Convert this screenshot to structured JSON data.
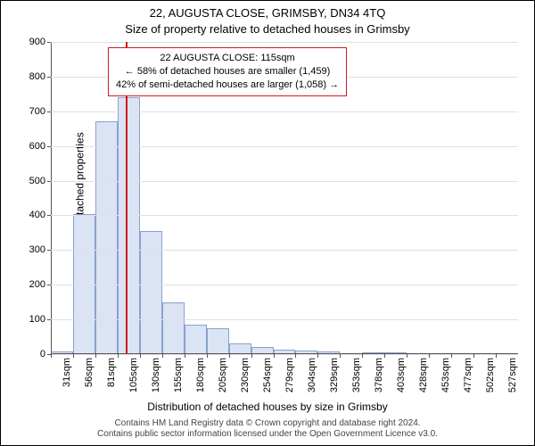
{
  "title_line1": "22, AUGUSTA CLOSE, GRIMSBY, DN34 4TQ",
  "title_line2": "Size of property relative to detached houses in Grimsby",
  "y_axis_label": "Number of detached properties",
  "x_axis_label": "Distribution of detached houses by size in Grimsby",
  "caption_line1": "Contains HM Land Registry data © Crown copyright and database right 2024.",
  "caption_line2": "Contains public sector information licensed under the Open Government Licence v3.0.",
  "histogram": {
    "type": "histogram",
    "ylim": [
      0,
      900
    ],
    "ytick_step": 100,
    "grid_color": "#e0e0e0",
    "axis_color": "#555555",
    "background_color": "#ffffff",
    "bar_fill": "#dbe4f5",
    "bar_stroke": "#8aa0cf",
    "marker_color": "#d11a1a",
    "marker_x_sqm": 115,
    "x_start_sqm": 31,
    "x_bin_width_sqm": 25,
    "label_fontsize": 12,
    "tick_fontsize": 11,
    "title_fontsize": 13,
    "bins": [
      {
        "label": "31sqm",
        "count": 8
      },
      {
        "label": "56sqm",
        "count": 405
      },
      {
        "label": "81sqm",
        "count": 670
      },
      {
        "label": "105sqm",
        "count": 740
      },
      {
        "label": "130sqm",
        "count": 355
      },
      {
        "label": "155sqm",
        "count": 148
      },
      {
        "label": "180sqm",
        "count": 85
      },
      {
        "label": "205sqm",
        "count": 75
      },
      {
        "label": "230sqm",
        "count": 30
      },
      {
        "label": "254sqm",
        "count": 20
      },
      {
        "label": "279sqm",
        "count": 12
      },
      {
        "label": "304sqm",
        "count": 10
      },
      {
        "label": "329sqm",
        "count": 8
      },
      {
        "label": "353sqm",
        "count": 0
      },
      {
        "label": "378sqm",
        "count": 4
      },
      {
        "label": "403sqm",
        "count": 2
      },
      {
        "label": "428sqm",
        "count": 0
      },
      {
        "label": "453sqm",
        "count": 0
      },
      {
        "label": "477sqm",
        "count": 0
      },
      {
        "label": "502sqm",
        "count": 0
      },
      {
        "label": "527sqm",
        "count": 0
      }
    ]
  },
  "annotation": {
    "line1": "22 AUGUSTA CLOSE: 115sqm",
    "line2": "← 58% of detached houses are smaller (1,459)",
    "line3": "42% of semi-detached houses are larger (1,058) →",
    "border_color": "#d11a1a",
    "fontsize": 11
  }
}
